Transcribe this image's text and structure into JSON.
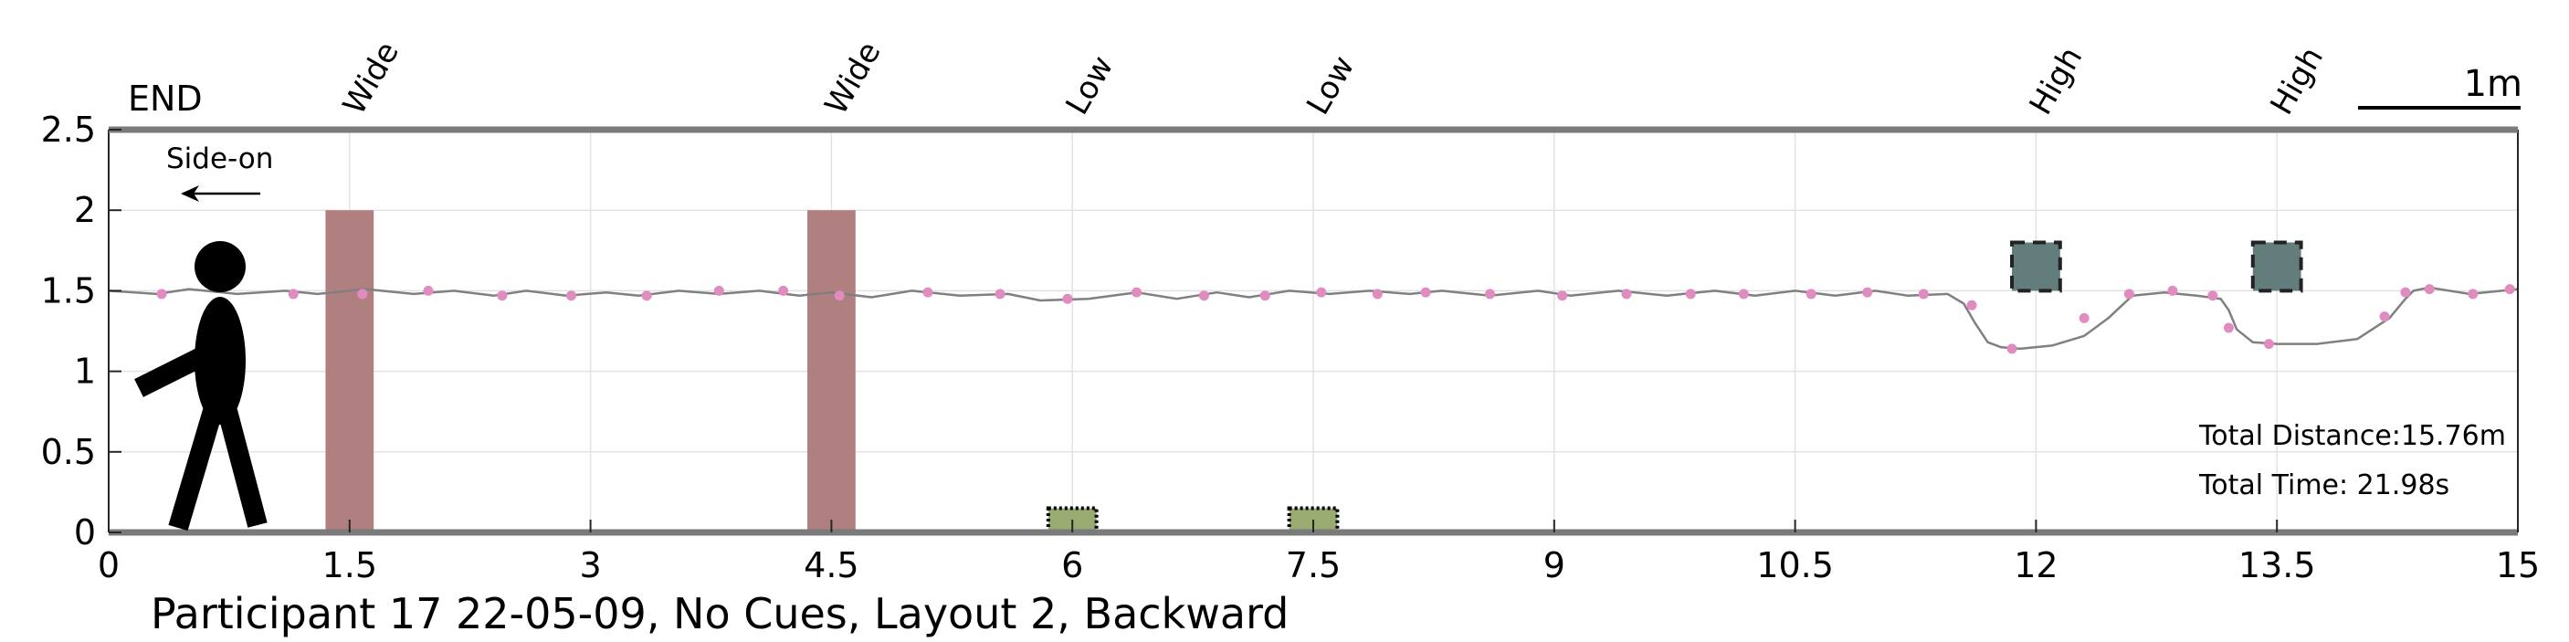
{
  "chart_data": {
    "type": "line",
    "title": "",
    "xlabel": "",
    "ylabel": "",
    "xlim": [
      0,
      15
    ],
    "ylim": [
      0,
      2.5
    ],
    "x_ticks": [
      0,
      1.5,
      3,
      4.5,
      6,
      7.5,
      9,
      10.5,
      12,
      13.5,
      15
    ],
    "x_tick_labels": [
      "0",
      "1.5",
      "3",
      "4.5",
      "6",
      "7.5",
      "9",
      "10.5",
      "12",
      "13.5",
      "15"
    ],
    "y_ticks": [
      0,
      0.5,
      1,
      1.5,
      2,
      2.5
    ],
    "y_tick_labels": [
      "0",
      "0.5",
      "1",
      "1.5",
      "2",
      "2.5"
    ],
    "grid": true,
    "end_label": "END",
    "direction_label": "Side-on",
    "direction_arrow": "left",
    "scale_bar_label": "1m",
    "scale_bar_length": 1,
    "caption": "Participant 17 22-05-09, No Cues, Layout 2, Backward",
    "stats": {
      "distance": "Total Distance:15.76m",
      "time": "Total Time: 21.98s"
    },
    "obstacles": [
      {
        "label": "Wide",
        "type": "wide",
        "x": 1.5,
        "width": 0.3,
        "y_bottom": 0,
        "y_top": 2.0,
        "color": "#b07f7f"
      },
      {
        "label": "Wide",
        "type": "wide",
        "x": 4.5,
        "width": 0.3,
        "y_bottom": 0,
        "y_top": 2.0,
        "color": "#b07f7f"
      },
      {
        "label": "Low",
        "type": "low",
        "x": 6.0,
        "width": 0.3,
        "y_bottom": 0,
        "y_top": 0.15,
        "color": "#9aab72"
      },
      {
        "label": "Low",
        "type": "low",
        "x": 7.5,
        "width": 0.3,
        "y_bottom": 0,
        "y_top": 0.15,
        "color": "#9aab72"
      },
      {
        "label": "High",
        "type": "high",
        "x": 12.0,
        "width": 0.3,
        "y_bottom": 1.5,
        "y_top": 1.8,
        "color": "#637c7c"
      },
      {
        "label": "High",
        "type": "high",
        "x": 13.5,
        "width": 0.3,
        "y_bottom": 1.5,
        "y_top": 1.8,
        "color": "#637c7c"
      }
    ],
    "series": [
      {
        "color": "#808080",
        "x": [
          0.0,
          0.3,
          0.5,
          0.8,
          1.1,
          1.3,
          1.6,
          1.9,
          2.15,
          2.4,
          2.6,
          2.85,
          3.1,
          3.3,
          3.55,
          3.8,
          4.05,
          4.3,
          4.5,
          4.75,
          5.0,
          5.3,
          5.6,
          5.8,
          6.1,
          6.4,
          6.65,
          6.9,
          7.1,
          7.35,
          7.6,
          7.85,
          8.1,
          8.3,
          8.6,
          8.9,
          9.1,
          9.4,
          9.7,
          10.0,
          10.25,
          10.5,
          10.75,
          11.0,
          11.2,
          11.45,
          11.55,
          11.62,
          11.7,
          11.78,
          11.9,
          12.1,
          12.3,
          12.45,
          12.6,
          12.8,
          13.0,
          13.15,
          13.2,
          13.25,
          13.35,
          13.5,
          13.75,
          14.0,
          14.2,
          14.3,
          14.35,
          14.45,
          14.7,
          14.9,
          15.0
        ],
        "y": [
          1.5,
          1.48,
          1.51,
          1.48,
          1.5,
          1.48,
          1.51,
          1.48,
          1.5,
          1.47,
          1.5,
          1.47,
          1.49,
          1.47,
          1.5,
          1.48,
          1.5,
          1.47,
          1.49,
          1.46,
          1.5,
          1.47,
          1.48,
          1.44,
          1.45,
          1.49,
          1.45,
          1.49,
          1.46,
          1.5,
          1.48,
          1.5,
          1.48,
          1.5,
          1.47,
          1.5,
          1.47,
          1.5,
          1.47,
          1.5,
          1.47,
          1.5,
          1.47,
          1.5,
          1.47,
          1.48,
          1.42,
          1.3,
          1.18,
          1.15,
          1.14,
          1.16,
          1.22,
          1.33,
          1.47,
          1.49,
          1.47,
          1.45,
          1.38,
          1.26,
          1.18,
          1.17,
          1.17,
          1.2,
          1.33,
          1.45,
          1.5,
          1.52,
          1.48,
          1.5,
          1.51
        ]
      }
    ],
    "markers": {
      "color": "#e08cc0",
      "x": [
        0.33,
        1.15,
        1.58,
        1.99,
        2.45,
        2.88,
        3.35,
        3.8,
        4.2,
        4.55,
        5.1,
        5.55,
        5.97,
        6.4,
        6.82,
        7.2,
        7.55,
        7.9,
        8.2,
        8.6,
        9.05,
        9.45,
        9.85,
        10.18,
        10.6,
        10.95,
        11.3,
        11.6,
        11.85,
        12.3,
        12.58,
        12.85,
        13.1,
        13.2,
        13.45,
        14.17,
        14.3,
        14.45,
        14.72,
        14.95
      ],
      "y": [
        1.48,
        1.48,
        1.48,
        1.5,
        1.47,
        1.47,
        1.47,
        1.5,
        1.5,
        1.47,
        1.49,
        1.48,
        1.45,
        1.49,
        1.47,
        1.47,
        1.49,
        1.48,
        1.49,
        1.48,
        1.47,
        1.48,
        1.48,
        1.48,
        1.48,
        1.49,
        1.48,
        1.41,
        1.14,
        1.33,
        1.48,
        1.5,
        1.47,
        1.27,
        1.17,
        1.34,
        1.49,
        1.51,
        1.48,
        1.51
      ]
    }
  }
}
